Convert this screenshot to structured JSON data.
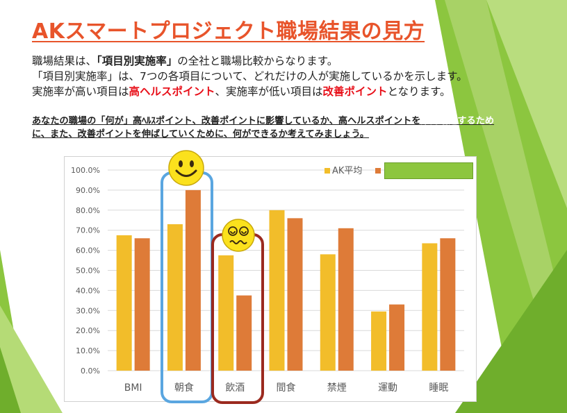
{
  "slide": {
    "title": "AKスマートプロジェクト職場結果の見方",
    "intro": {
      "l1_a": "職場結果は、",
      "l1_b": "「項目別実施率」",
      "l1_c": "の全社と職場比較からなります。",
      "l2": "「項目別実施率」は、7つの各項目について、どれだけの人が実施しているかを示します。",
      "l3_a": "実施率が高い項目は",
      "l3_b": "高ヘルスポイント",
      "l3_c": "、実施率が低い項目は",
      "l3_d": "改善ポイント",
      "l3_e": "となります。"
    },
    "note": {
      "l1_a": "あなたの職場の「何が」高ﾍﾙｽポイント、改善ポイントに影響しているか、高ヘルスポイントを",
      "l1_b": "維持増進するため",
      "l2": "に、また、改善ポイントを伸ばしていくために、何ができるか考えてみましょう。"
    },
    "icons": [
      "smiley-face-icon",
      "dizzy-face-icon"
    ]
  },
  "colors": {
    "title": "#e8542b",
    "series_ak": "#f2bd2a",
    "series_workplace": "#de7b38",
    "highlight_good": "#5aa6e0",
    "highlight_bad": "#9b2a1f",
    "legend_box": "#8dc63f",
    "accent_red": "#e8101a"
  },
  "chart_data": {
    "type": "bar",
    "categories": [
      "BMI",
      "朝食",
      "飲酒",
      "間食",
      "禁煙",
      "運動",
      "睡眠"
    ],
    "series": [
      {
        "name": "AK平均",
        "values": [
          67.5,
          73.0,
          57.5,
          80.0,
          58.0,
          29.5,
          63.5
        ]
      },
      {
        "values": [
          66.0,
          90.0,
          37.5,
          76.0,
          71.0,
          33.0,
          66.0
        ]
      }
    ],
    "yticks": [
      "100.0%",
      "90.0%",
      "80.0%",
      "70.0%",
      "60.0%",
      "50.0%",
      "40.0%",
      "30.0%",
      "20.0%",
      "10.0%",
      "0.0%"
    ],
    "ylim": [
      0,
      100
    ],
    "grid": true,
    "legend_position": "top-right"
  }
}
